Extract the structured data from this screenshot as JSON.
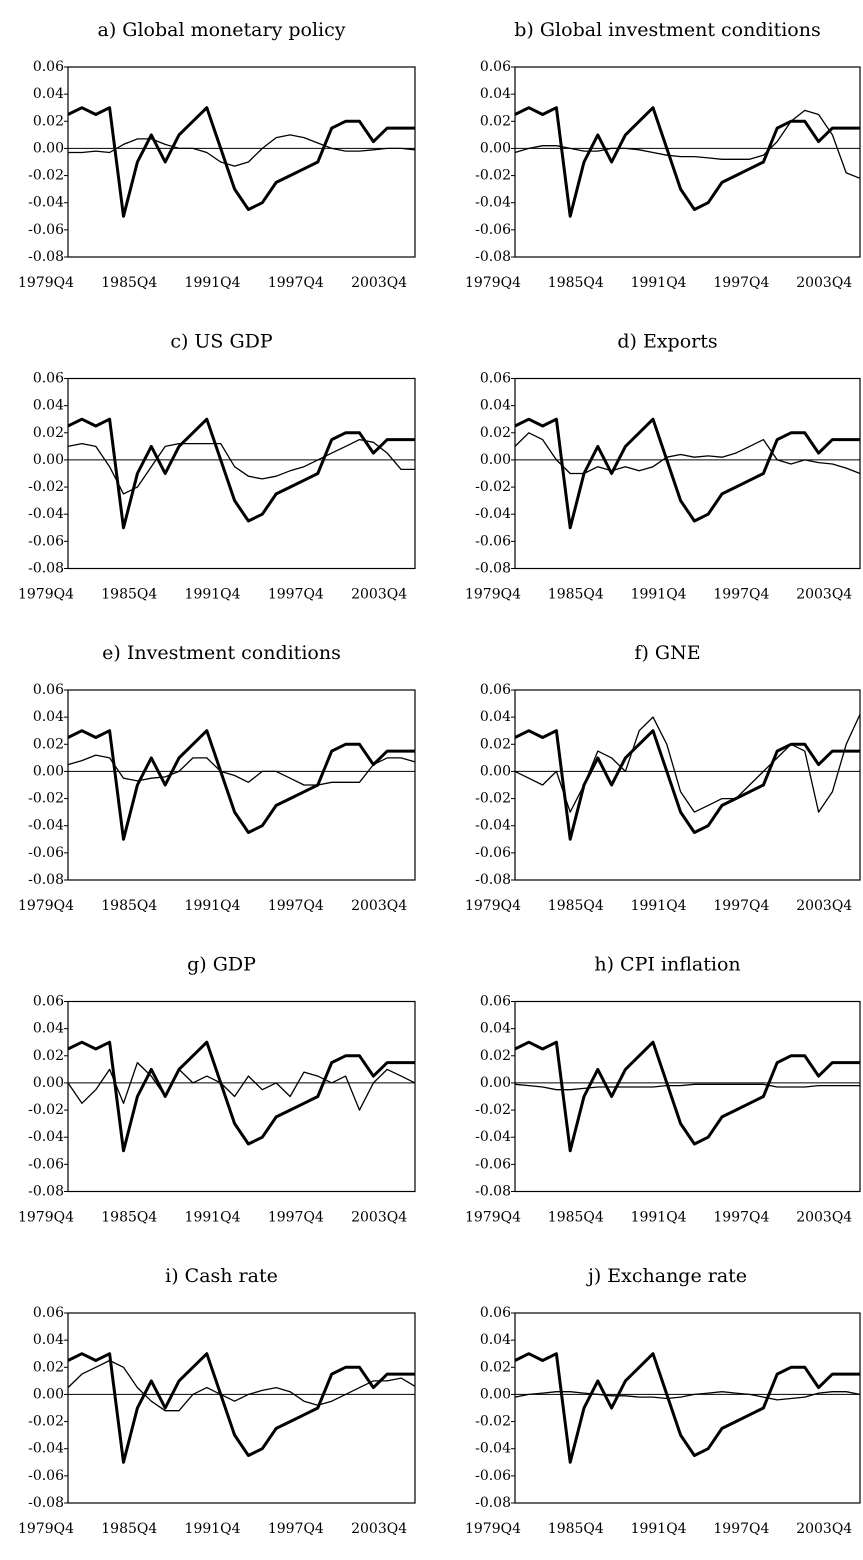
{
  "chart_data": [
    {
      "type": "line",
      "title": "a) Global monetary policy",
      "categories": [
        "1979Q4",
        null,
        null,
        null,
        null,
        null,
        "1985Q4",
        null,
        null,
        null,
        null,
        null,
        "1991Q4",
        null,
        null,
        null,
        null,
        null,
        "1997Q4",
        null,
        null,
        null,
        null,
        null,
        "2003Q4",
        null
      ],
      "series": [
        {
          "color": "#000000",
          "values": [
            0.025,
            0.03,
            0.025,
            0.03,
            -0.05,
            -0.01,
            0.01,
            -0.01,
            0.01,
            0.02,
            0.03,
            0.0,
            -0.03,
            -0.045,
            -0.04,
            -0.025,
            -0.02,
            -0.015,
            -0.01,
            0.015,
            0.02,
            0.02,
            0.005,
            0.015,
            0.015,
            0.015
          ]
        },
        {
          "color": "#000000",
          "values": [
            -0.003,
            -0.003,
            -0.002,
            -0.003,
            0.003,
            0.007,
            0.007,
            0.003,
            0.0,
            0.0,
            -0.003,
            -0.01,
            -0.013,
            -0.01,
            0.0,
            0.008,
            0.01,
            0.008,
            0.004,
            0.0,
            -0.002,
            -0.002,
            -0.001,
            0.0,
            0.0,
            -0.001
          ]
        }
      ],
      "ylim": [
        -0.08,
        0.06
      ],
      "yticks": [
        0.06,
        0.04,
        0.02,
        {
          "value": 0,
          "label": "0.00"
        },
        -0.02,
        -0.04,
        -0.06,
        -0.08
      ]
    },
    {
      "type": "line",
      "title": "b) Global investment conditions",
      "categories": [
        "1979Q4",
        null,
        null,
        null,
        null,
        null,
        "1985Q4",
        null,
        null,
        null,
        null,
        null,
        "1991Q4",
        null,
        null,
        null,
        null,
        null,
        "1997Q4",
        null,
        null,
        null,
        null,
        null,
        "2003Q4",
        null
      ],
      "series": [
        {
          "color": "#000000",
          "values": [
            0.025,
            0.03,
            0.025,
            0.03,
            -0.05,
            -0.01,
            0.01,
            -0.01,
            0.01,
            0.02,
            0.03,
            0.0,
            -0.03,
            -0.045,
            -0.04,
            -0.025,
            -0.02,
            -0.015,
            -0.01,
            0.015,
            0.02,
            0.02,
            0.005,
            0.015,
            0.015,
            0.015
          ]
        },
        {
          "color": "#000000",
          "values": [
            -0.003,
            0.0,
            0.002,
            0.002,
            0.0,
            -0.002,
            -0.002,
            0.0,
            0.0,
            -0.001,
            -0.003,
            -0.005,
            -0.006,
            -0.006,
            -0.007,
            -0.008,
            -0.008,
            -0.008,
            -0.005,
            0.005,
            0.02,
            0.028,
            0.025,
            0.01,
            -0.018,
            -0.022
          ]
        }
      ],
      "ylim": [
        -0.08,
        0.06
      ],
      "yticks": [
        0.06,
        0.04,
        0.02,
        {
          "value": 0,
          "label": "0.00"
        },
        -0.02,
        -0.04,
        -0.06,
        -0.08
      ]
    },
    {
      "type": "line",
      "title": "c) US GDP",
      "categories": [
        "1979Q4",
        null,
        null,
        null,
        null,
        null,
        "1985Q4",
        null,
        null,
        null,
        null,
        null,
        "1991Q4",
        null,
        null,
        null,
        null,
        null,
        "1997Q4",
        null,
        null,
        null,
        null,
        null,
        "2003Q4",
        null
      ],
      "series": [
        {
          "color": "#000000",
          "values": [
            0.025,
            0.03,
            0.025,
            0.03,
            -0.05,
            -0.01,
            0.01,
            -0.01,
            0.01,
            0.02,
            0.03,
            0.0,
            -0.03,
            -0.045,
            -0.04,
            -0.025,
            -0.02,
            -0.015,
            -0.01,
            0.015,
            0.02,
            0.02,
            0.005,
            0.015,
            0.015,
            0.015
          ]
        },
        {
          "color": "#000000",
          "values": [
            0.01,
            0.012,
            0.01,
            -0.005,
            -0.025,
            -0.02,
            -0.005,
            0.01,
            0.012,
            0.012,
            0.012,
            0.012,
            -0.005,
            -0.012,
            -0.014,
            -0.012,
            -0.008,
            -0.005,
            0.0,
            0.005,
            0.01,
            0.015,
            0.013,
            0.005,
            -0.007,
            -0.007
          ]
        }
      ],
      "ylim": [
        -0.08,
        0.06
      ],
      "yticks": [
        0.06,
        0.04,
        0.02,
        {
          "value": 0,
          "label": "0.00"
        },
        -0.02,
        -0.04,
        -0.06,
        -0.08
      ]
    },
    {
      "type": "line",
      "title": "d) Exports",
      "categories": [
        "1979Q4",
        null,
        null,
        null,
        null,
        null,
        "1985Q4",
        null,
        null,
        null,
        null,
        null,
        "1991Q4",
        null,
        null,
        null,
        null,
        null,
        "1997Q4",
        null,
        null,
        null,
        null,
        null,
        "2003Q4",
        null
      ],
      "series": [
        {
          "color": "#000000",
          "values": [
            0.025,
            0.03,
            0.025,
            0.03,
            -0.05,
            -0.01,
            0.01,
            -0.01,
            0.01,
            0.02,
            0.03,
            0.0,
            -0.03,
            -0.045,
            -0.04,
            -0.025,
            -0.02,
            -0.015,
            -0.01,
            0.015,
            0.02,
            0.02,
            0.005,
            0.015,
            0.015,
            0.015
          ]
        },
        {
          "color": "#000000",
          "values": [
            0.01,
            0.02,
            0.015,
            0.0,
            -0.01,
            -0.01,
            -0.005,
            -0.008,
            -0.005,
            -0.008,
            -0.005,
            0.002,
            0.004,
            0.002,
            0.003,
            0.002,
            0.005,
            0.01,
            0.015,
            0.0,
            -0.003,
            0.0,
            -0.002,
            -0.003,
            -0.006,
            -0.01
          ]
        }
      ],
      "ylim": [
        -0.08,
        0.06
      ],
      "yticks": [
        0.06,
        0.04,
        0.02,
        {
          "value": 0,
          "label": "0.00"
        },
        -0.02,
        -0.04,
        -0.06,
        -0.08
      ]
    },
    {
      "type": "line",
      "title": "e) Investment conditions",
      "categories": [
        "1979Q4",
        null,
        null,
        null,
        null,
        null,
        "1985Q4",
        null,
        null,
        null,
        null,
        null,
        "1991Q4",
        null,
        null,
        null,
        null,
        null,
        "1997Q4",
        null,
        null,
        null,
        null,
        null,
        "2003Q4",
        null
      ],
      "series": [
        {
          "color": "#000000",
          "values": [
            0.025,
            0.03,
            0.025,
            0.03,
            -0.05,
            -0.01,
            0.01,
            -0.01,
            0.01,
            0.02,
            0.03,
            0.0,
            -0.03,
            -0.045,
            -0.04,
            -0.025,
            -0.02,
            -0.015,
            -0.01,
            0.015,
            0.02,
            0.02,
            0.005,
            0.015,
            0.015,
            0.015
          ]
        },
        {
          "color": "#000000",
          "values": [
            0.005,
            0.008,
            0.012,
            0.01,
            -0.005,
            -0.007,
            -0.005,
            -0.004,
            0.0,
            0.01,
            0.01,
            0.0,
            -0.003,
            -0.008,
            0.0,
            0.0,
            -0.005,
            -0.01,
            -0.01,
            -0.008,
            -0.008,
            -0.008,
            0.005,
            0.01,
            0.01,
            0.007
          ]
        }
      ],
      "ylim": [
        -0.08,
        0.06
      ],
      "yticks": [
        0.06,
        0.04,
        0.02,
        {
          "value": 0,
          "label": "0.00"
        },
        -0.02,
        -0.04,
        -0.06,
        -0.08
      ]
    },
    {
      "type": "line",
      "title": "f) GNE",
      "categories": [
        "1979Q4",
        null,
        null,
        null,
        null,
        null,
        "1985Q4",
        null,
        null,
        null,
        null,
        null,
        "1991Q4",
        null,
        null,
        null,
        null,
        null,
        "1997Q4",
        null,
        null,
        null,
        null,
        null,
        "2003Q4",
        null
      ],
      "series": [
        {
          "color": "#000000",
          "values": [
            0.025,
            0.03,
            0.025,
            0.03,
            -0.05,
            -0.01,
            0.01,
            -0.01,
            0.01,
            0.02,
            0.03,
            0.0,
            -0.03,
            -0.045,
            -0.04,
            -0.025,
            -0.02,
            -0.015,
            -0.01,
            0.015,
            0.02,
            0.02,
            0.005,
            0.015,
            0.015,
            0.015
          ]
        },
        {
          "color": "#000000",
          "values": [
            0.0,
            -0.005,
            -0.01,
            0.0,
            -0.03,
            -0.01,
            0.015,
            0.01,
            0.0,
            0.03,
            0.04,
            0.02,
            -0.015,
            -0.03,
            -0.025,
            -0.02,
            -0.02,
            -0.01,
            0.0,
            0.01,
            0.02,
            0.015,
            -0.03,
            -0.015,
            0.02,
            0.042
          ]
        }
      ],
      "ylim": [
        -0.08,
        0.06
      ],
      "yticks": [
        0.06,
        0.04,
        0.02,
        {
          "value": 0,
          "label": "0.00"
        },
        -0.02,
        -0.04,
        -0.06,
        -0.08
      ]
    },
    {
      "type": "line",
      "title": "g) GDP",
      "categories": [
        "1979Q4",
        null,
        null,
        null,
        null,
        null,
        "1985Q4",
        null,
        null,
        null,
        null,
        null,
        "1991Q4",
        null,
        null,
        null,
        null,
        null,
        "1997Q4",
        null,
        null,
        null,
        null,
        null,
        "2003Q4",
        null
      ],
      "series": [
        {
          "color": "#000000",
          "values": [
            0.025,
            0.03,
            0.025,
            0.03,
            -0.05,
            -0.01,
            0.01,
            -0.01,
            0.01,
            0.02,
            0.03,
            0.0,
            -0.03,
            -0.045,
            -0.04,
            -0.025,
            -0.02,
            -0.015,
            -0.01,
            0.015,
            0.02,
            0.02,
            0.005,
            0.015,
            0.015,
            0.015
          ]
        },
        {
          "color": "#000000",
          "values": [
            0.0,
            -0.015,
            -0.005,
            0.01,
            -0.015,
            0.015,
            0.005,
            -0.01,
            0.01,
            0.0,
            0.005,
            0.0,
            -0.01,
            0.005,
            -0.005,
            0.0,
            -0.01,
            0.008,
            0.005,
            0.0,
            0.005,
            -0.02,
            0.0,
            0.01,
            0.005,
            0.0
          ]
        }
      ],
      "ylim": [
        -0.08,
        0.06
      ],
      "yticks": [
        0.06,
        0.04,
        0.02,
        {
          "value": 0,
          "label": "0.00"
        },
        -0.02,
        -0.04,
        -0.06,
        -0.08
      ]
    },
    {
      "type": "line",
      "title": "h) CPI inflation",
      "categories": [
        "1979Q4",
        null,
        null,
        null,
        null,
        null,
        "1985Q4",
        null,
        null,
        null,
        null,
        null,
        "1991Q4",
        null,
        null,
        null,
        null,
        null,
        "1997Q4",
        null,
        null,
        null,
        null,
        null,
        "2003Q4",
        null
      ],
      "series": [
        {
          "color": "#000000",
          "values": [
            0.025,
            0.03,
            0.025,
            0.03,
            -0.05,
            -0.01,
            0.01,
            -0.01,
            0.01,
            0.02,
            0.03,
            0.0,
            -0.03,
            -0.045,
            -0.04,
            -0.025,
            -0.02,
            -0.015,
            -0.01,
            0.015,
            0.02,
            0.02,
            0.005,
            0.015,
            0.015,
            0.015
          ]
        },
        {
          "color": "#000000",
          "values": [
            -0.001,
            -0.002,
            -0.003,
            -0.005,
            -0.005,
            -0.004,
            -0.003,
            -0.003,
            -0.003,
            -0.003,
            -0.003,
            -0.002,
            -0.002,
            -0.001,
            -0.001,
            -0.001,
            -0.001,
            -0.001,
            -0.001,
            -0.003,
            -0.003,
            -0.003,
            -0.002,
            -0.002,
            -0.002,
            -0.002
          ]
        }
      ],
      "ylim": [
        -0.08,
        0.06
      ],
      "yticks": [
        0.06,
        0.04,
        0.02,
        {
          "value": 0,
          "label": "0.00"
        },
        -0.02,
        -0.04,
        -0.06,
        -0.08
      ]
    },
    {
      "type": "line",
      "title": "i) Cash rate",
      "categories": [
        "1979Q4",
        null,
        null,
        null,
        null,
        null,
        "1985Q4",
        null,
        null,
        null,
        null,
        null,
        "1991Q4",
        null,
        null,
        null,
        null,
        null,
        "1997Q4",
        null,
        null,
        null,
        null,
        null,
        "2003Q4",
        null
      ],
      "series": [
        {
          "color": "#000000",
          "values": [
            0.025,
            0.03,
            0.025,
            0.03,
            -0.05,
            -0.01,
            0.01,
            -0.01,
            0.01,
            0.02,
            0.03,
            0.0,
            -0.03,
            -0.045,
            -0.04,
            -0.025,
            -0.02,
            -0.015,
            -0.01,
            0.015,
            0.02,
            0.02,
            0.005,
            0.015,
            0.015,
            0.015
          ]
        },
        {
          "color": "#000000",
          "values": [
            0.005,
            0.015,
            0.02,
            0.025,
            0.02,
            0.005,
            -0.005,
            -0.012,
            -0.012,
            0.0,
            0.005,
            0.0,
            -0.005,
            0.0,
            0.003,
            0.005,
            0.002,
            -0.005,
            -0.008,
            -0.005,
            0.0,
            0.005,
            0.01,
            0.01,
            0.012,
            0.006
          ]
        }
      ],
      "ylim": [
        -0.08,
        0.06
      ],
      "yticks": [
        0.06,
        0.04,
        0.02,
        {
          "value": 0,
          "label": "0.00"
        },
        -0.02,
        -0.04,
        -0.06,
        -0.08
      ]
    },
    {
      "type": "line",
      "title": "j) Exchange rate",
      "categories": [
        "1979Q4",
        null,
        null,
        null,
        null,
        null,
        "1985Q4",
        null,
        null,
        null,
        null,
        null,
        "1991Q4",
        null,
        null,
        null,
        null,
        null,
        "1997Q4",
        null,
        null,
        null,
        null,
        null,
        "2003Q4",
        null
      ],
      "series": [
        {
          "color": "#000000",
          "values": [
            0.025,
            0.03,
            0.025,
            0.03,
            -0.05,
            -0.01,
            0.01,
            -0.01,
            0.01,
            0.02,
            0.03,
            0.0,
            -0.03,
            -0.045,
            -0.04,
            -0.025,
            -0.02,
            -0.015,
            -0.01,
            0.015,
            0.02,
            0.02,
            0.005,
            0.015,
            0.015,
            0.015
          ]
        },
        {
          "color": "#000000",
          "values": [
            -0.002,
            0.0,
            0.001,
            0.002,
            0.002,
            0.001,
            0.0,
            -0.001,
            -0.001,
            -0.002,
            -0.002,
            -0.003,
            -0.002,
            0.0,
            0.001,
            0.002,
            0.001,
            0.0,
            -0.002,
            -0.004,
            -0.003,
            -0.002,
            0.001,
            0.002,
            0.002,
            0.0
          ]
        }
      ],
      "ylim": [
        -0.08,
        0.06
      ],
      "yticks": [
        0.06,
        0.04,
        0.02,
        {
          "value": 0,
          "label": "0.00"
        },
        -0.02,
        -0.04,
        -0.06,
        -0.08
      ]
    }
  ]
}
